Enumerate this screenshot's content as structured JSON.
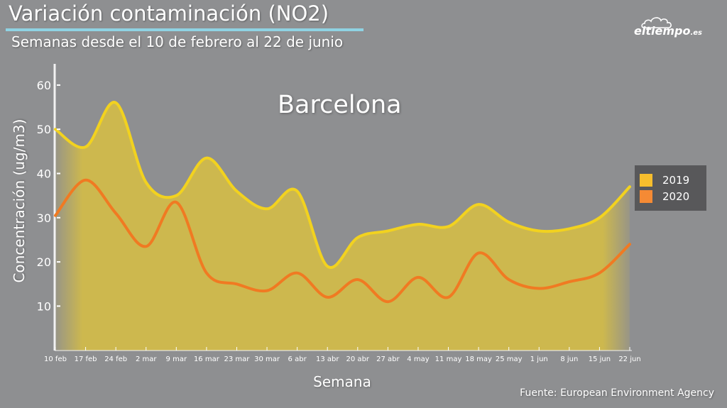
{
  "header": {
    "title": "Variación contaminación (NO2)",
    "subtitle": "Semanas desde el 10 de febrero al 22 de junio"
  },
  "brand": {
    "name": "eltiempo",
    "domain": ".es"
  },
  "source": "Fuente: European Environment Agency",
  "colors": {
    "background": "#8e8f91",
    "series_2019": "#f2d21f",
    "series_2019_fill": "#cdb84e",
    "series_2020": "#f07a22",
    "title_underline": "#8fd3e3",
    "legend_bg": "#58585a",
    "legend_2019": "#f7be2d",
    "legend_2020": "#f58a34"
  },
  "chart_data": {
    "type": "area",
    "title": "Barcelona",
    "xlabel": "Semana",
    "ylabel": "Concentración (ug/m3)",
    "categories": [
      "10 feb",
      "17 feb",
      "24 feb",
      "2 mar",
      "9 mar",
      "16 mar",
      "23 mar",
      "30 mar",
      "6 abr",
      "13 abr",
      "20 abr",
      "27 abr",
      "4 may",
      "11 may",
      "18 may",
      "25 may",
      "1 jun",
      "8 jun",
      "15 jun",
      "22 jun"
    ],
    "yticks": [
      10,
      20,
      30,
      40,
      50,
      60
    ],
    "ylim": [
      0,
      65
    ],
    "legend_position": "right",
    "series": [
      {
        "name": "2019",
        "values": [
          50,
          46,
          56,
          38,
          35,
          43.5,
          36,
          32,
          36,
          19,
          25.5,
          27,
          28.5,
          28,
          33,
          29,
          27,
          27.5,
          30,
          37
        ]
      },
      {
        "name": "2020",
        "values": [
          30.5,
          38.5,
          31,
          23.5,
          33.5,
          17.5,
          15,
          13.5,
          17.5,
          12,
          16,
          11,
          16.5,
          12,
          22,
          16,
          14,
          15.5,
          17.5,
          24
        ]
      }
    ]
  }
}
